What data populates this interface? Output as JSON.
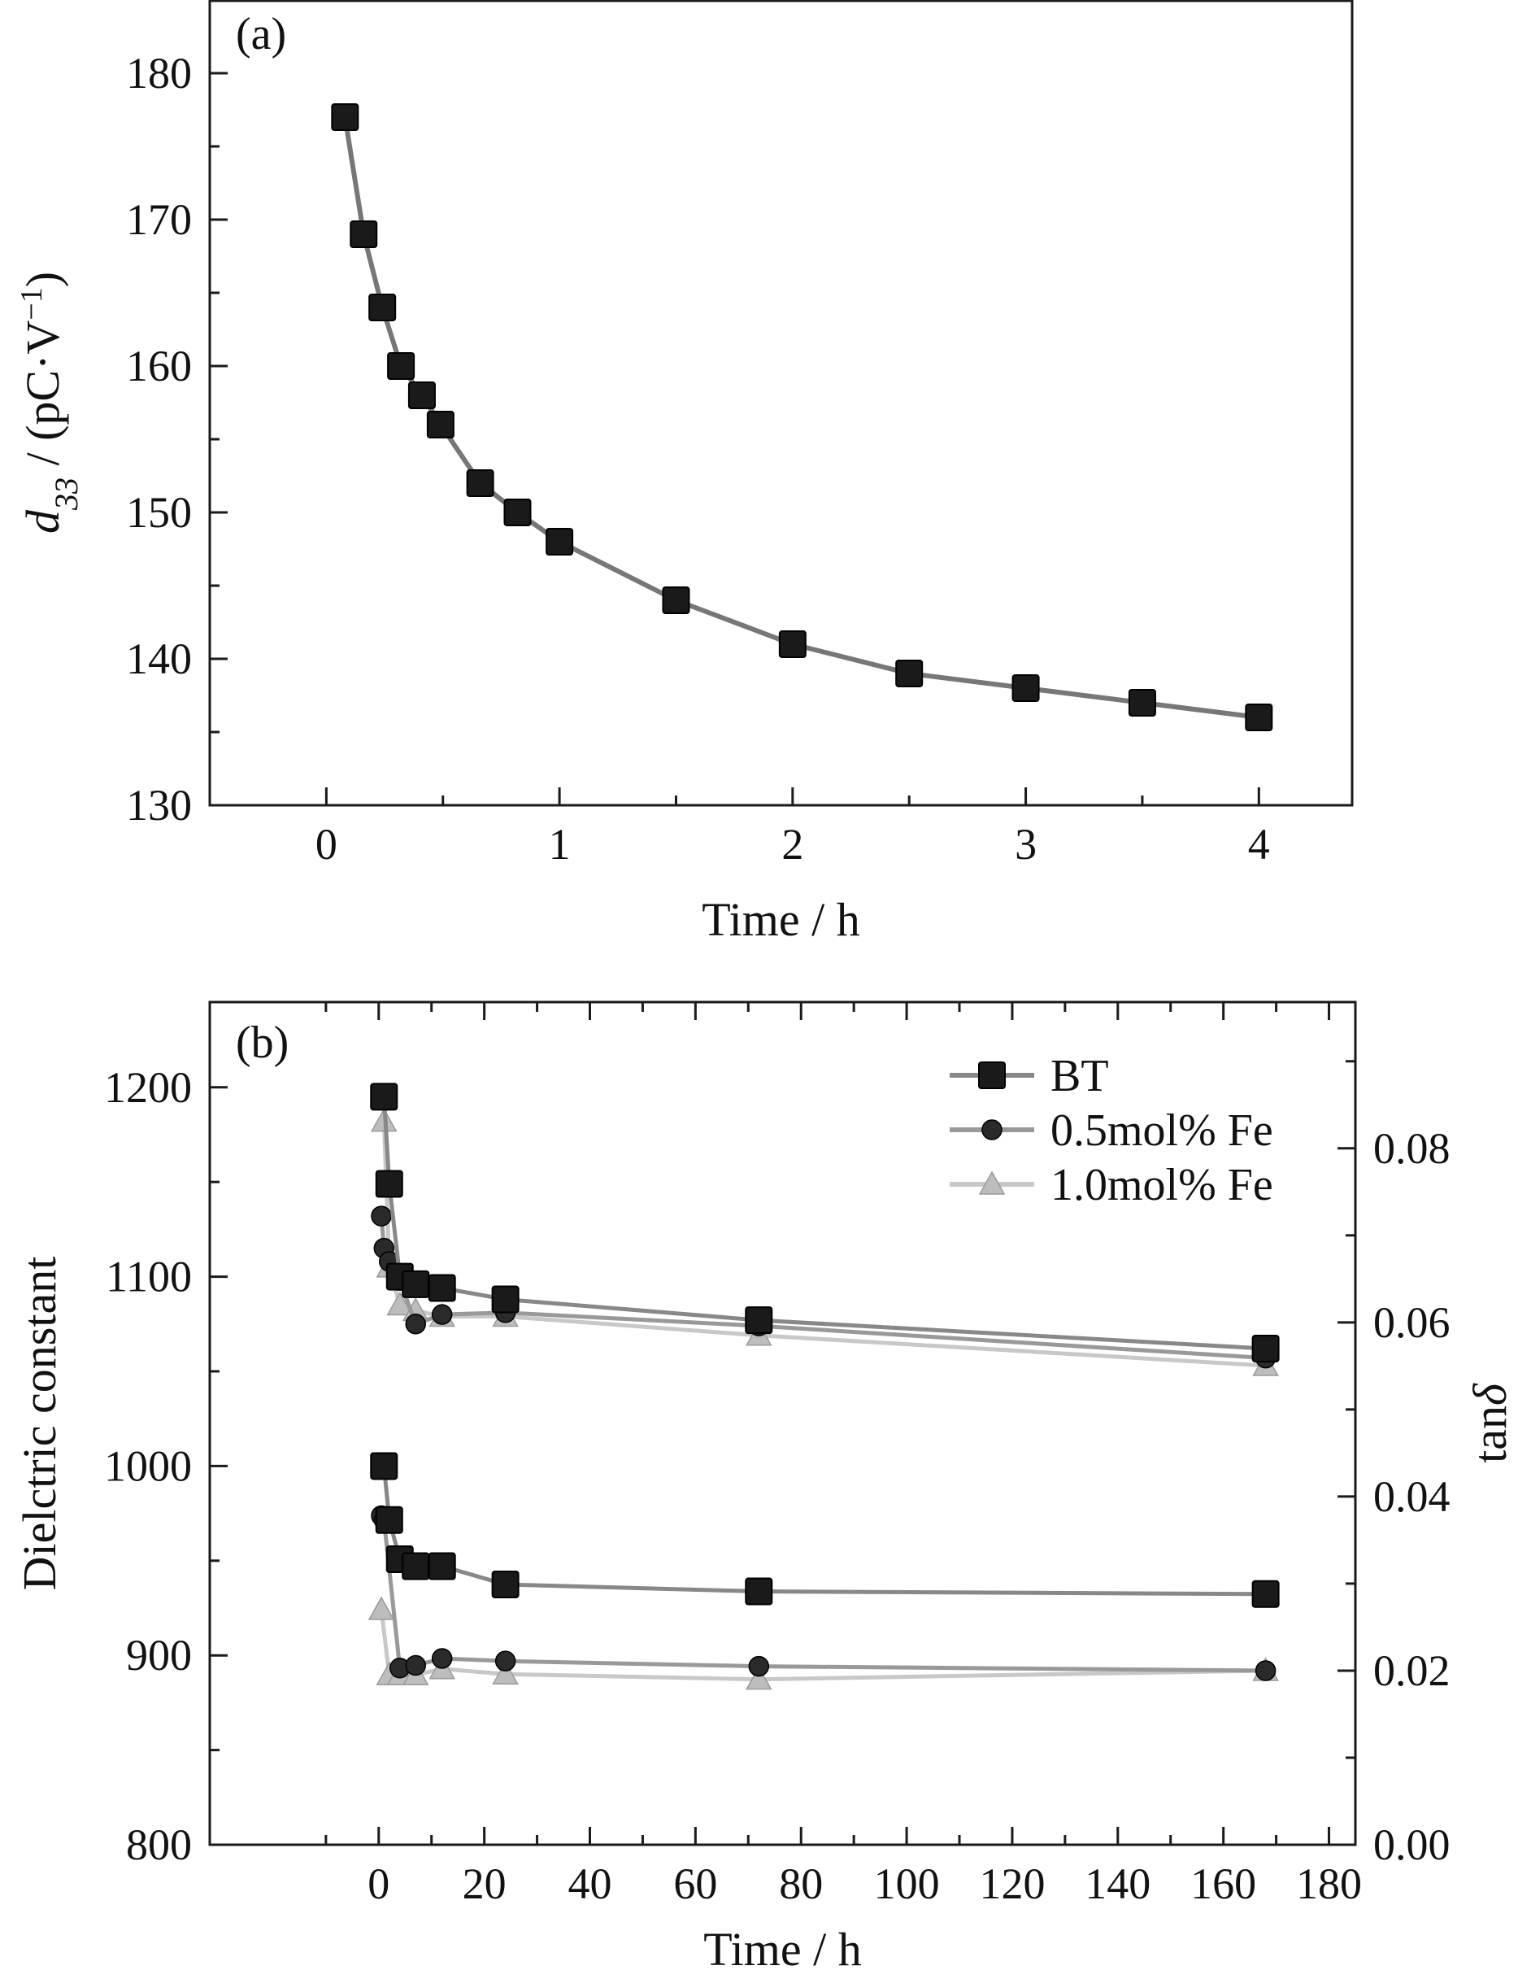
{
  "chart_data": [
    {
      "type": "line",
      "panel_label": "(a)",
      "xlabel": "Time / h",
      "ylabel": {
        "symbol": "d",
        "subscript": "33",
        "unit_prefix": " / (pC·V",
        "superscript": "−1",
        "unit_suffix": ")"
      },
      "xlim": [
        -0.5,
        4.4
      ],
      "ylim": [
        130,
        185
      ],
      "xticks": [
        0,
        1,
        2,
        3,
        4
      ],
      "yticks": [
        130,
        140,
        150,
        160,
        170,
        180
      ],
      "grid": false,
      "series": [
        {
          "marker": "square",
          "color": "#1a1a1a",
          "line_color": "#777777",
          "x": [
            0.08,
            0.16,
            0.24,
            0.32,
            0.41,
            0.49,
            0.66,
            0.82,
            1.0,
            1.5,
            2.0,
            2.5,
            3.0,
            3.5,
            4.0
          ],
          "y": [
            177,
            169,
            164,
            160,
            158,
            156,
            152,
            150,
            148,
            144,
            141,
            139,
            138,
            137,
            136
          ]
        }
      ]
    },
    {
      "type": "line",
      "panel_label": "(b)",
      "xlabel": "Time / h",
      "ylabel": "Dielctric constant",
      "y2label": {
        "prefix": "tan",
        "symbol": "δ"
      },
      "xlim": [
        -32,
        185
      ],
      "ylim": [
        800,
        1245
      ],
      "y2lim": [
        0.0,
        0.0968
      ],
      "xticks": [
        0,
        20,
        40,
        60,
        80,
        100,
        120,
        140,
        160,
        180
      ],
      "yticks": [
        800,
        900,
        1000,
        1100,
        1200
      ],
      "y2ticks": [
        0.0,
        0.02,
        0.04,
        0.06,
        0.08
      ],
      "y2tick_labels": [
        "0.00",
        "0.02",
        "0.04",
        "0.06",
        "0.08"
      ],
      "grid": false,
      "legend_position": "top-right",
      "legend": [
        "BT",
        "0.5mol% Fe",
        "1.0mol% Fe"
      ],
      "series": [
        {
          "name": "BT",
          "axis": "left",
          "marker": "square",
          "color": "#1a1a1a",
          "line_color": "#888888",
          "x": [
            1,
            2,
            4,
            7,
            12,
            24,
            72,
            168
          ],
          "y": [
            1195,
            1149,
            1100,
            1096,
            1094,
            1088,
            1077,
            1062
          ]
        },
        {
          "name": "0.5mol% Fe",
          "axis": "left",
          "marker": "circle",
          "color": "#2a2a2a",
          "line_color": "#999999",
          "x": [
            0.5,
            1,
            2,
            4,
            7,
            12,
            24,
            72,
            168
          ],
          "y": [
            1132,
            1115,
            1108,
            1098,
            1075,
            1080,
            1081,
            1074,
            1057
          ]
        },
        {
          "name": "1.0mol% Fe",
          "axis": "left",
          "marker": "triangle",
          "color": "#bdbdbd",
          "line_color": "#c8c8c8",
          "x": [
            1,
            2,
            4,
            7,
            12,
            24,
            72,
            168
          ],
          "y": [
            1182,
            1105,
            1085,
            1082,
            1079,
            1079,
            1069,
            1053
          ]
        },
        {
          "name": "BT",
          "axis": "right",
          "marker": "square",
          "color": "#1a1a1a",
          "line_color": "#888888",
          "x": [
            1,
            2,
            4,
            7,
            12,
            24,
            72,
            168
          ],
          "y": [
            0.0435,
            0.0373,
            0.0328,
            0.032,
            0.032,
            0.0299,
            0.0291,
            0.0288
          ]
        },
        {
          "name": "0.5mol% Fe",
          "axis": "right",
          "marker": "circle",
          "color": "#2a2a2a",
          "line_color": "#999999",
          "x": [
            0.5,
            1,
            4,
            7,
            12,
            24,
            72,
            168
          ],
          "y": [
            0.0378,
            0.0373,
            0.0203,
            0.0206,
            0.0214,
            0.0211,
            0.0205,
            0.02
          ]
        },
        {
          "name": "1.0mol% Fe",
          "axis": "right",
          "marker": "triangle",
          "color": "#bdbdbd",
          "line_color": "#c8c8c8",
          "x": [
            0.5,
            2,
            4,
            7,
            12,
            24,
            72,
            168
          ],
          "y": [
            0.027,
            0.0195,
            0.0195,
            0.0195,
            0.0202,
            0.0196,
            0.019,
            0.02
          ]
        }
      ]
    }
  ]
}
